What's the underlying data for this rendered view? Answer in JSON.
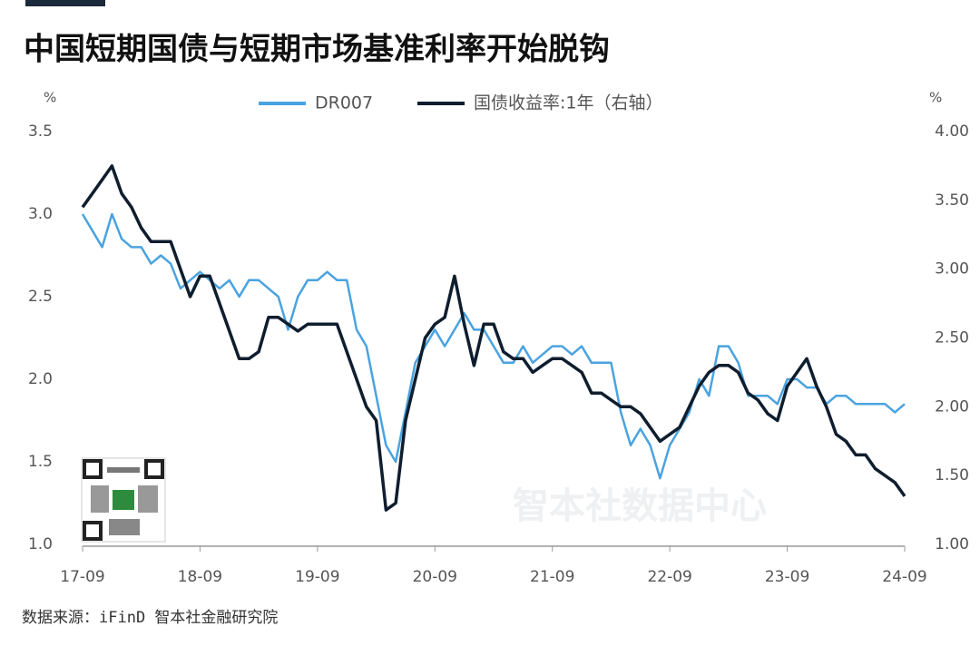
{
  "chart_data": {
    "type": "line",
    "title": "中国短期国债与短期市场基准利率开始脱钩",
    "y_unit": "%",
    "y2_unit": "%",
    "source": "数据来源：iFinD 智本社金融研究院",
    "watermark": "智本社数据中心",
    "x": [
      "17-09",
      "17-10",
      "17-11",
      "17-12",
      "18-01",
      "18-02",
      "18-03",
      "18-04",
      "18-05",
      "18-06",
      "18-07",
      "18-08",
      "18-09",
      "18-10",
      "18-11",
      "18-12",
      "19-01",
      "19-02",
      "19-03",
      "19-04",
      "19-05",
      "19-06",
      "19-07",
      "19-08",
      "19-09",
      "19-10",
      "19-11",
      "19-12",
      "20-01",
      "20-02",
      "20-03",
      "20-04",
      "20-05",
      "20-06",
      "20-07",
      "20-08",
      "20-09",
      "20-10",
      "20-11",
      "20-12",
      "21-01",
      "21-02",
      "21-03",
      "21-04",
      "21-05",
      "21-06",
      "21-07",
      "21-08",
      "21-09",
      "21-10",
      "21-11",
      "21-12",
      "22-01",
      "22-02",
      "22-03",
      "22-04",
      "22-05",
      "22-06",
      "22-07",
      "22-08",
      "22-09",
      "22-10",
      "22-11",
      "22-12",
      "23-01",
      "23-02",
      "23-03",
      "23-04",
      "23-05",
      "23-06",
      "23-07",
      "23-08",
      "23-09",
      "23-10",
      "23-11",
      "23-12",
      "24-01",
      "24-02",
      "24-03",
      "24-04",
      "24-05",
      "24-06",
      "24-07",
      "24-08",
      "24-09"
    ],
    "xticks": [
      "17-09",
      "18-09",
      "19-09",
      "20-09",
      "21-09",
      "22-09",
      "23-09",
      "24-09"
    ],
    "ylim": [
      1.0,
      3.5
    ],
    "yticks": [
      {
        "value": 1,
        "label": "1.0"
      },
      1.5,
      {
        "value": 2,
        "label": "2.0"
      },
      2.5,
      {
        "value": 3,
        "label": "3.0"
      },
      3.5
    ],
    "y2lim": [
      1.0,
      4.0
    ],
    "y2ticks": [
      {
        "value": 1,
        "label": "1.00"
      },
      {
        "value": 1.5,
        "label": "1.50"
      },
      {
        "value": 2,
        "label": "2.00"
      },
      {
        "value": 2.5,
        "label": "2.50"
      },
      {
        "value": 3,
        "label": "3.00"
      },
      {
        "value": 3.5,
        "label": "3.50"
      },
      {
        "value": 4,
        "label": "4.00"
      }
    ],
    "series": [
      {
        "name": "DR007",
        "color": "#4aa3e0",
        "values": [
          3.0,
          2.9,
          2.8,
          3.0,
          2.85,
          2.8,
          2.8,
          2.7,
          2.75,
          2.7,
          2.55,
          2.6,
          2.65,
          2.6,
          2.55,
          2.6,
          2.5,
          2.6,
          2.6,
          2.55,
          2.5,
          2.3,
          2.5,
          2.6,
          2.6,
          2.65,
          2.6,
          2.6,
          2.3,
          2.2,
          1.9,
          1.6,
          1.5,
          1.8,
          2.1,
          2.2,
          2.3,
          2.2,
          2.3,
          2.4,
          2.3,
          2.3,
          2.2,
          2.1,
          2.1,
          2.2,
          2.1,
          2.15,
          2.2,
          2.2,
          2.15,
          2.2,
          2.1,
          2.1,
          2.1,
          1.8,
          1.6,
          1.7,
          1.6,
          1.4,
          1.6,
          1.7,
          1.8,
          2.0,
          1.9,
          2.2,
          2.2,
          2.1,
          1.9,
          1.9,
          1.9,
          1.85,
          2.0,
          2.0,
          1.95,
          1.95,
          1.85,
          1.9,
          1.9,
          1.85,
          1.85,
          1.85,
          1.85,
          1.8,
          1.85
        ]
      },
      {
        "name": "国债收益率:1年（右轴）",
        "color": "#0f1e2e",
        "axis": "y2",
        "values": [
          3.45,
          3.55,
          3.65,
          3.75,
          3.55,
          3.45,
          3.3,
          3.2,
          3.2,
          3.2,
          3.0,
          2.8,
          2.95,
          2.95,
          2.75,
          2.55,
          2.35,
          2.35,
          2.4,
          2.65,
          2.65,
          2.6,
          2.55,
          2.6,
          2.6,
          2.6,
          2.6,
          2.4,
          2.2,
          2.0,
          1.9,
          1.25,
          1.3,
          1.9,
          2.2,
          2.5,
          2.6,
          2.65,
          2.95,
          2.6,
          2.3,
          2.6,
          2.6,
          2.4,
          2.35,
          2.35,
          2.25,
          2.3,
          2.35,
          2.35,
          2.3,
          2.25,
          2.1,
          2.1,
          2.05,
          2.0,
          2.0,
          1.95,
          1.85,
          1.75,
          1.8,
          1.85,
          2.0,
          2.15,
          2.25,
          2.3,
          2.3,
          2.25,
          2.1,
          2.05,
          1.95,
          1.9,
          2.15,
          2.25,
          2.35,
          2.15,
          2.0,
          1.8,
          1.75,
          1.65,
          1.65,
          1.55,
          1.5,
          1.45,
          1.35
        ]
      }
    ]
  }
}
